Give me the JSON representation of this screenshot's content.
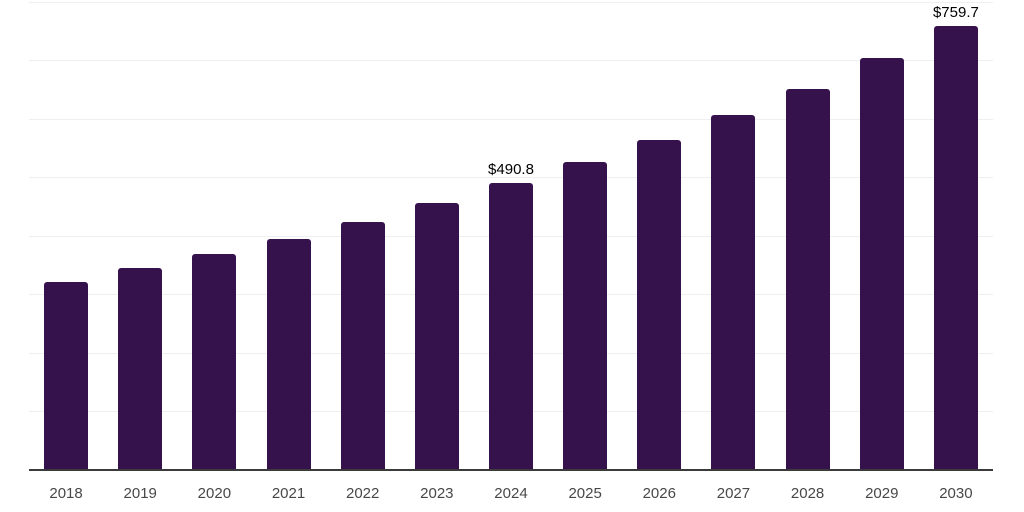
{
  "chart_data": {
    "type": "bar",
    "title": "",
    "xlabel": "",
    "ylabel": "",
    "categories": [
      "2018",
      "2019",
      "2020",
      "2021",
      "2022",
      "2023",
      "2024",
      "2025",
      "2026",
      "2027",
      "2028",
      "2029",
      "2030"
    ],
    "values": [
      322,
      346,
      369,
      395,
      424,
      456,
      490.8,
      526,
      564,
      606,
      652,
      704,
      759.7
    ],
    "data_labels": [
      {
        "category": "2024",
        "text": "$490.8"
      },
      {
        "category": "2030",
        "text": "$759.7"
      }
    ],
    "ylim": [
      0,
      800
    ],
    "grid_step": 100,
    "grid": true,
    "legend": false,
    "colors": {
      "bar": "#36124d",
      "gridline": "#efefef",
      "axis_line": "#3b3b3b",
      "tick_label": "#484848",
      "value_label": "#000000",
      "background": "#ffffff"
    }
  }
}
